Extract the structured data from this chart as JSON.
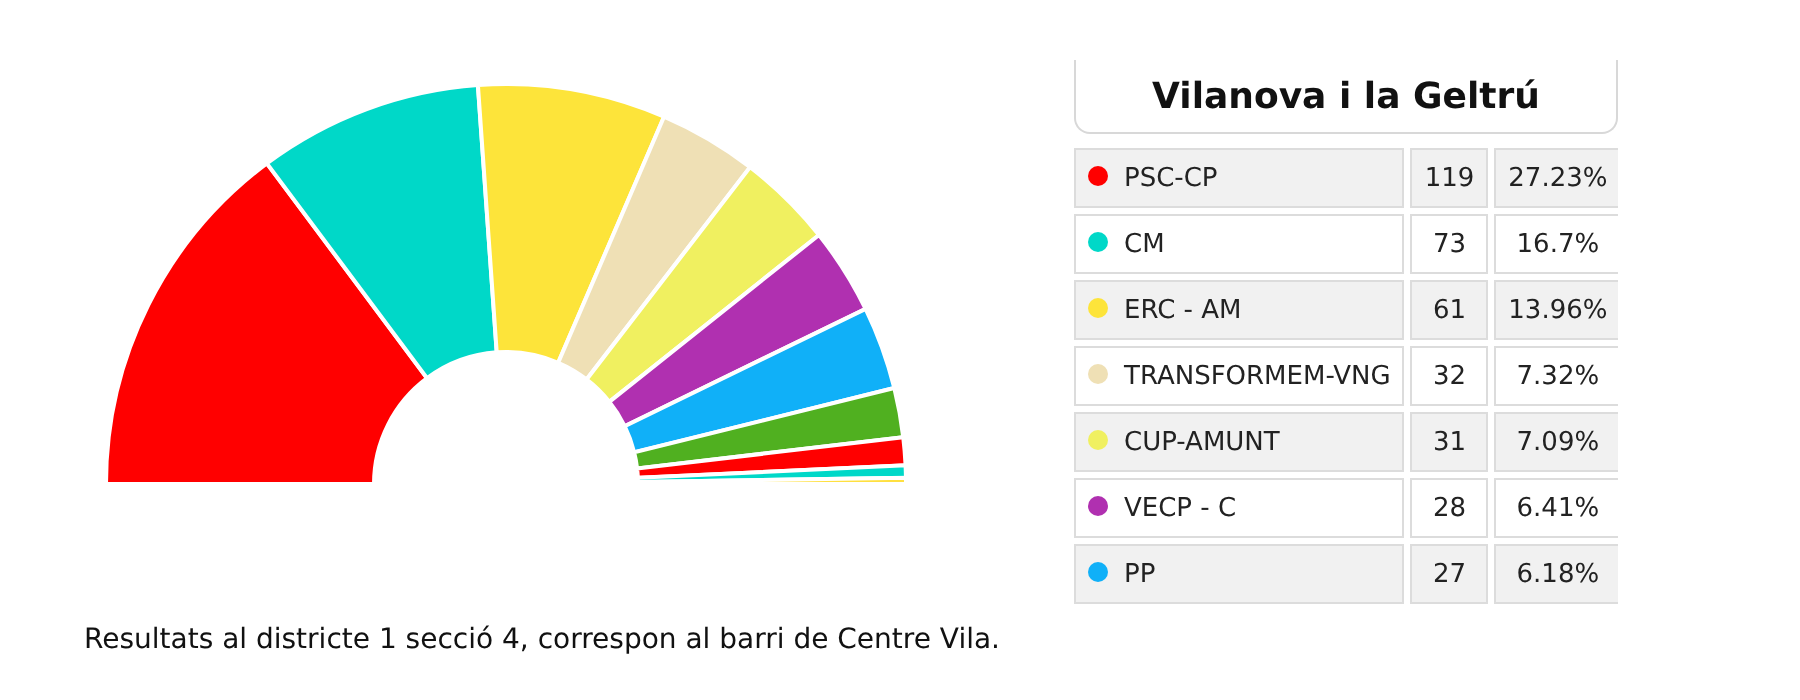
{
  "chart_data": {
    "type": "donut",
    "title": "Vilanova i la Geltrú",
    "categories": [
      "PSC-CP",
      "CM",
      "ERC - AM",
      "TRANSFORMEM-VNG",
      "CUP-AMUNT",
      "VECP - C",
      "PP",
      null,
      null,
      null,
      null
    ],
    "values": [
      119,
      73,
      61,
      32,
      31,
      28,
      27,
      16,
      9,
      4,
      2
    ],
    "value_labels": [
      "119",
      "73",
      "61",
      "32",
      "31",
      "28",
      "27",
      null,
      null,
      null,
      null
    ],
    "colors": [
      "#ff0000",
      "#00d8c8",
      "#fde43a",
      "#efe0b5",
      "#f0f060",
      "#b030b0",
      "#10b0f8",
      "#50b020",
      "#ff0000",
      "#00d8c8",
      "#ffe040"
    ],
    "legend": "right",
    "annotations": [
      {
        "text": "27.23%",
        "x": "PSC-CP"
      },
      {
        "text": "16.7%",
        "x": "CM"
      },
      {
        "text": "13.96%",
        "x": "ERC - AM"
      },
      {
        "text": "7.32%",
        "x": "TRANSFORMEM-VNG"
      },
      {
        "text": "7.09%",
        "x": "CUP-AMUNT"
      },
      {
        "text": "6.41%",
        "x": "VECP - C"
      },
      {
        "text": "6.18%",
        "x": "PP"
      },
      "Resultats al districte 1 secció 4, correspon al barri de Centre Vila."
    ]
  }
}
